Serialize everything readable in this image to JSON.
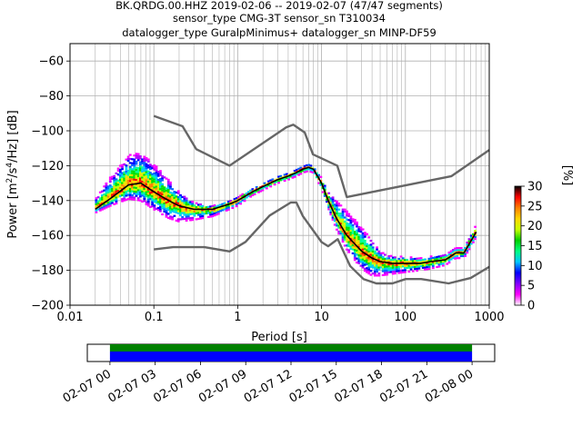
{
  "title_lines": [
    "BK.QRDG.00.HHZ   2019-02-06 -- 2019-02-07  (47/47 segments)",
    "sensor_type CMG-3T sensor_sn T310034",
    "datalogger_type GuralpMinimus+ datalogger_sn MINP-DF59"
  ],
  "colorbar": {
    "label": "[%]",
    "ticks": [
      "0",
      "5",
      "10",
      "15",
      "20",
      "25",
      "30"
    ],
    "range": [
      0,
      30
    ],
    "colors": [
      "#ffffff",
      "#ff00ff",
      "#8000ff",
      "#0000ff",
      "#00c8ff",
      "#00ff80",
      "#00d000",
      "#c8ff00",
      "#ffd700",
      "#ff8000",
      "#ff0000",
      "#000000"
    ]
  },
  "timebar": {
    "tick_labels": [
      "02-07 00",
      "02-07 03",
      "02-07 06",
      "02-07 09",
      "02-07 12",
      "02-07 15",
      "02-07 18",
      "02-07 21",
      "02-08 00"
    ],
    "range_hours": [
      -1.5,
      25.5
    ],
    "coverage_hours": [
      0,
      24
    ],
    "colors": {
      "data": "#0000ff",
      "gaps_ok": "#008000"
    }
  },
  "chart_data": {
    "type": "heatmap",
    "xlabel": "Period [s]",
    "ylabel": "Power [m2/s4/Hz] [dB]",
    "x_scale": "log",
    "xlim": [
      0.01,
      1000
    ],
    "ylim": [
      -200,
      -50
    ],
    "x_tick_labels": [
      "0.01",
      "0.1",
      "1",
      "10",
      "100",
      "1000"
    ],
    "y_ticks": [
      -60,
      -80,
      -100,
      -120,
      -140,
      -160,
      -180,
      -200
    ],
    "grid": true,
    "psd_density": {
      "period": [
        0.02,
        0.03,
        0.05,
        0.07,
        0.1,
        0.15,
        0.2,
        0.3,
        0.5,
        0.8,
        1,
        1.5,
        2,
        3,
        4,
        5,
        6,
        7,
        8,
        10,
        12,
        15,
        20,
        30,
        40,
        50,
        70,
        100,
        150,
        200,
        300,
        400,
        500,
        700
      ],
      "mode_db": [
        -145,
        -139,
        -131,
        -130,
        -135,
        -140,
        -143,
        -145,
        -145,
        -142,
        -140,
        -135,
        -132,
        -128,
        -126,
        -124,
        -122,
        -121,
        -122,
        -130,
        -140,
        -150,
        -160,
        -169,
        -173,
        -175,
        -176,
        -176,
        -176,
        -175,
        -174,
        -170,
        -170,
        -158
      ],
      "spread_upper_db": [
        6,
        12,
        17,
        18,
        16,
        12,
        8,
        4,
        2,
        2,
        2,
        2,
        2,
        2,
        2,
        2,
        2,
        2,
        2,
        3,
        6,
        10,
        14,
        14,
        10,
        6,
        4,
        4,
        3,
        3,
        3,
        3,
        3,
        4
      ],
      "spread_lower_db": [
        2,
        4,
        8,
        10,
        10,
        10,
        9,
        6,
        4,
        3,
        3,
        2,
        2,
        2,
        2,
        2,
        2,
        2,
        2,
        3,
        4,
        6,
        8,
        10,
        10,
        8,
        6,
        5,
        4,
        4,
        3,
        3,
        3,
        3
      ]
    },
    "series": [
      {
        "kind": "mode-line",
        "color": "#000000",
        "x": [
          0.02,
          0.03,
          0.05,
          0.07,
          0.1,
          0.15,
          0.2,
          0.3,
          0.5,
          0.8,
          1,
          1.5,
          2,
          3,
          4,
          5,
          6,
          7,
          8,
          10,
          12,
          15,
          20,
          30,
          40,
          50,
          70,
          100,
          150,
          200,
          300,
          400,
          500,
          700
        ],
        "y": [
          -145,
          -139,
          -131,
          -130,
          -135,
          -140,
          -143,
          -145,
          -145,
          -142,
          -140,
          -135,
          -132,
          -128,
          -126,
          -124,
          -122,
          -121,
          -122,
          -130,
          -140,
          -150,
          -160,
          -169,
          -173,
          -175,
          -176,
          -176,
          -176,
          -175,
          -174,
          -170,
          -170,
          -158
        ]
      },
      {
        "kind": "new-high-noise-model",
        "color": "#666666",
        "x": [
          0.1,
          0.22,
          0.32,
          0.8,
          3.8,
          4.6,
          6.3,
          7.9,
          15.4,
          20,
          354.8,
          1000
        ],
        "y": [
          -91.5,
          -97.4,
          -110.5,
          -120,
          -98,
          -96.5,
          -101,
          -113.5,
          -120,
          -138,
          -126,
          -111
        ]
      },
      {
        "kind": "new-low-noise-model",
        "color": "#666666",
        "x": [
          0.1,
          0.17,
          0.4,
          0.8,
          1.24,
          2.4,
          4.3,
          5,
          6,
          10,
          12,
          15.6,
          21.9,
          31.6,
          45,
          70,
          101,
          154,
          328,
          600,
          1000
        ],
        "y": [
          -168,
          -166.7,
          -166.7,
          -169.2,
          -163.7,
          -148.6,
          -141.1,
          -141.1,
          -149,
          -163.8,
          -166.2,
          -162.1,
          -177.5,
          -185,
          -187.5,
          -187.5,
          -185,
          -185,
          -187.5,
          -184.4,
          -178
        ]
      }
    ]
  }
}
